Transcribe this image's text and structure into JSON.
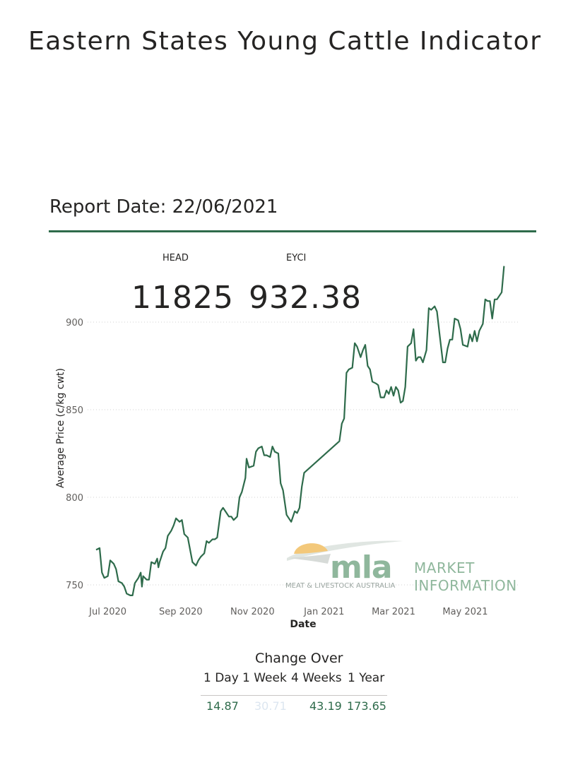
{
  "header": {
    "title": "Eastern States Young Cattle Indicator",
    "report_date": "Report Date: 22/06/2021"
  },
  "kpis": {
    "head_label": "HEAD",
    "head_value": "11825",
    "eyci_label": "EYCI",
    "eyci_value": "932.38"
  },
  "logo": {
    "word": "mla",
    "subtitle": "MEAT & LIVESTOCK AUSTRALIA",
    "tag_line1": "MARKET",
    "tag_line2": "INFORMATION"
  },
  "change_over": {
    "title": "Change Over",
    "headers": [
      "1 Day",
      "1 Week",
      "4 Weeks",
      "1 Year"
    ],
    "values": [
      "14.87",
      "30.71",
      "43.19",
      "173.65"
    ],
    "value_colors": [
      "#2e6b4b",
      "#dce6f0",
      "#2e6b4b",
      "#2e6b4b"
    ]
  },
  "colors": {
    "line": "#2e6b4b",
    "rule": "#2e6b4b",
    "grid": "#d0d0d0"
  },
  "chart_data": {
    "type": "line",
    "title": "",
    "xlabel": "Date",
    "ylabel": "Average Price (c/kg cwt)",
    "x_ticks": [
      {
        "label": "Jul 2020",
        "date": "2020-07-01"
      },
      {
        "label": "Sep 2020",
        "date": "2020-09-01"
      },
      {
        "label": "Nov 2020",
        "date": "2020-11-01"
      },
      {
        "label": "Jan 2021",
        "date": "2021-01-01"
      },
      {
        "label": "Mar 2021",
        "date": "2021-03-01"
      },
      {
        "label": "May 2021",
        "date": "2021-05-01"
      }
    ],
    "y_ticks": [
      750,
      800,
      850,
      900
    ],
    "ylim": [
      746,
      932
    ],
    "xlim": [
      "2020-06-21",
      "2021-06-22"
    ],
    "grid": "horizontal dotted",
    "series": [
      {
        "values": [
          [
            "2020-06-21",
            770
          ],
          [
            "2020-06-24",
            771
          ],
          [
            "2020-06-26",
            757
          ],
          [
            "2020-06-28",
            754
          ],
          [
            "2020-07-01",
            755
          ],
          [
            "2020-07-03",
            764
          ],
          [
            "2020-07-06",
            762
          ],
          [
            "2020-07-08",
            759
          ],
          [
            "2020-07-10",
            752
          ],
          [
            "2020-07-13",
            751
          ],
          [
            "2020-07-15",
            749
          ],
          [
            "2020-07-17",
            745
          ],
          [
            "2020-07-20",
            744
          ],
          [
            "2020-07-22",
            744
          ],
          [
            "2020-07-24",
            751
          ],
          [
            "2020-07-27",
            754
          ],
          [
            "2020-07-29",
            757
          ],
          [
            "2020-07-30",
            749
          ],
          [
            "2020-07-31",
            755
          ],
          [
            "2020-08-03",
            753
          ],
          [
            "2020-08-05",
            753
          ],
          [
            "2020-08-07",
            763
          ],
          [
            "2020-08-10",
            762
          ],
          [
            "2020-08-12",
            765
          ],
          [
            "2020-08-13",
            760
          ],
          [
            "2020-08-14",
            763
          ],
          [
            "2020-08-17",
            769
          ],
          [
            "2020-08-19",
            771
          ],
          [
            "2020-08-21",
            778
          ],
          [
            "2020-08-24",
            781
          ],
          [
            "2020-08-26",
            784
          ],
          [
            "2020-08-28",
            788
          ],
          [
            "2020-08-31",
            786
          ],
          [
            "2020-09-02",
            787
          ],
          [
            "2020-09-04",
            779
          ],
          [
            "2020-09-07",
            777
          ],
          [
            "2020-09-09",
            770
          ],
          [
            "2020-09-11",
            763
          ],
          [
            "2020-09-14",
            761
          ],
          [
            "2020-09-16",
            764
          ],
          [
            "2020-09-18",
            766
          ],
          [
            "2020-09-21",
            768
          ],
          [
            "2020-09-23",
            775
          ],
          [
            "2020-09-25",
            774
          ],
          [
            "2020-09-28",
            776
          ],
          [
            "2020-09-30",
            776
          ],
          [
            "2020-10-02",
            777
          ],
          [
            "2020-10-05",
            792
          ],
          [
            "2020-10-07",
            794
          ],
          [
            "2020-10-09",
            792
          ],
          [
            "2020-10-12",
            789
          ],
          [
            "2020-10-14",
            789
          ],
          [
            "2020-10-16",
            787
          ],
          [
            "2020-10-19",
            789
          ],
          [
            "2020-10-21",
            800
          ],
          [
            "2020-10-23",
            803
          ],
          [
            "2020-10-26",
            811
          ],
          [
            "2020-10-27",
            822
          ],
          [
            "2020-10-29",
            817
          ],
          [
            "2020-11-02",
            818
          ],
          [
            "2020-11-04",
            826
          ],
          [
            "2020-11-06",
            828
          ],
          [
            "2020-11-09",
            829
          ],
          [
            "2020-11-11",
            824
          ],
          [
            "2020-11-13",
            824
          ],
          [
            "2020-11-16",
            823
          ],
          [
            "2020-11-18",
            829
          ],
          [
            "2020-11-20",
            826
          ],
          [
            "2020-11-23",
            825
          ],
          [
            "2020-11-25",
            808
          ],
          [
            "2020-11-27",
            804
          ],
          [
            "2020-11-30",
            790
          ],
          [
            "2020-12-02",
            788
          ],
          [
            "2020-12-04",
            786
          ],
          [
            "2020-12-07",
            792
          ],
          [
            "2020-12-09",
            791
          ],
          [
            "2020-12-11",
            794
          ],
          [
            "2020-12-13",
            806
          ],
          [
            "2020-12-15",
            814
          ],
          [
            "2021-01-14",
            832
          ],
          [
            "2021-01-16",
            842
          ],
          [
            "2021-01-18",
            845
          ],
          [
            "2021-01-20",
            871
          ],
          [
            "2021-01-22",
            873
          ],
          [
            "2021-01-25",
            874
          ],
          [
            "2021-01-27",
            888
          ],
          [
            "2021-01-29",
            886
          ],
          [
            "2021-02-01",
            880
          ],
          [
            "2021-02-03",
            884
          ],
          [
            "2021-02-05",
            887
          ],
          [
            "2021-02-07",
            875
          ],
          [
            "2021-02-09",
            873
          ],
          [
            "2021-02-11",
            866
          ],
          [
            "2021-02-14",
            865
          ],
          [
            "2021-02-16",
            864
          ],
          [
            "2021-02-18",
            857
          ],
          [
            "2021-02-21",
            857
          ],
          [
            "2021-02-23",
            861
          ],
          [
            "2021-02-25",
            859
          ],
          [
            "2021-02-27",
            863
          ],
          [
            "2021-03-01",
            858
          ],
          [
            "2021-03-03",
            863
          ],
          [
            "2021-03-05",
            861
          ],
          [
            "2021-03-07",
            854
          ],
          [
            "2021-03-09",
            855
          ],
          [
            "2021-03-11",
            863
          ],
          [
            "2021-03-13",
            886
          ],
          [
            "2021-03-16",
            888
          ],
          [
            "2021-03-18",
            896
          ],
          [
            "2021-03-20",
            878
          ],
          [
            "2021-03-22",
            880
          ],
          [
            "2021-03-24",
            880
          ],
          [
            "2021-03-26",
            877
          ],
          [
            "2021-03-29",
            884
          ],
          [
            "2021-03-31",
            908
          ],
          [
            "2021-04-02",
            907
          ],
          [
            "2021-04-05",
            909
          ],
          [
            "2021-04-07",
            906
          ],
          [
            "2021-04-09",
            894
          ],
          [
            "2021-04-12",
            877
          ],
          [
            "2021-04-14",
            877
          ],
          [
            "2021-04-16",
            885
          ],
          [
            "2021-04-18",
            890
          ],
          [
            "2021-04-20",
            890
          ],
          [
            "2021-04-22",
            902
          ],
          [
            "2021-04-25",
            901
          ],
          [
            "2021-04-27",
            896
          ],
          [
            "2021-04-29",
            887
          ],
          [
            "2021-05-03",
            886
          ],
          [
            "2021-05-05",
            893
          ],
          [
            "2021-05-07",
            889
          ],
          [
            "2021-05-09",
            895
          ],
          [
            "2021-05-11",
            889
          ],
          [
            "2021-05-13",
            895
          ],
          [
            "2021-05-16",
            899
          ],
          [
            "2021-05-18",
            913
          ],
          [
            "2021-05-20",
            912
          ],
          [
            "2021-05-22",
            912
          ],
          [
            "2021-05-24",
            902
          ],
          [
            "2021-05-26",
            913
          ],
          [
            "2021-05-28",
            913
          ],
          [
            "2021-06-01",
            917
          ],
          [
            "2021-06-03",
            932
          ]
        ]
      }
    ]
  }
}
